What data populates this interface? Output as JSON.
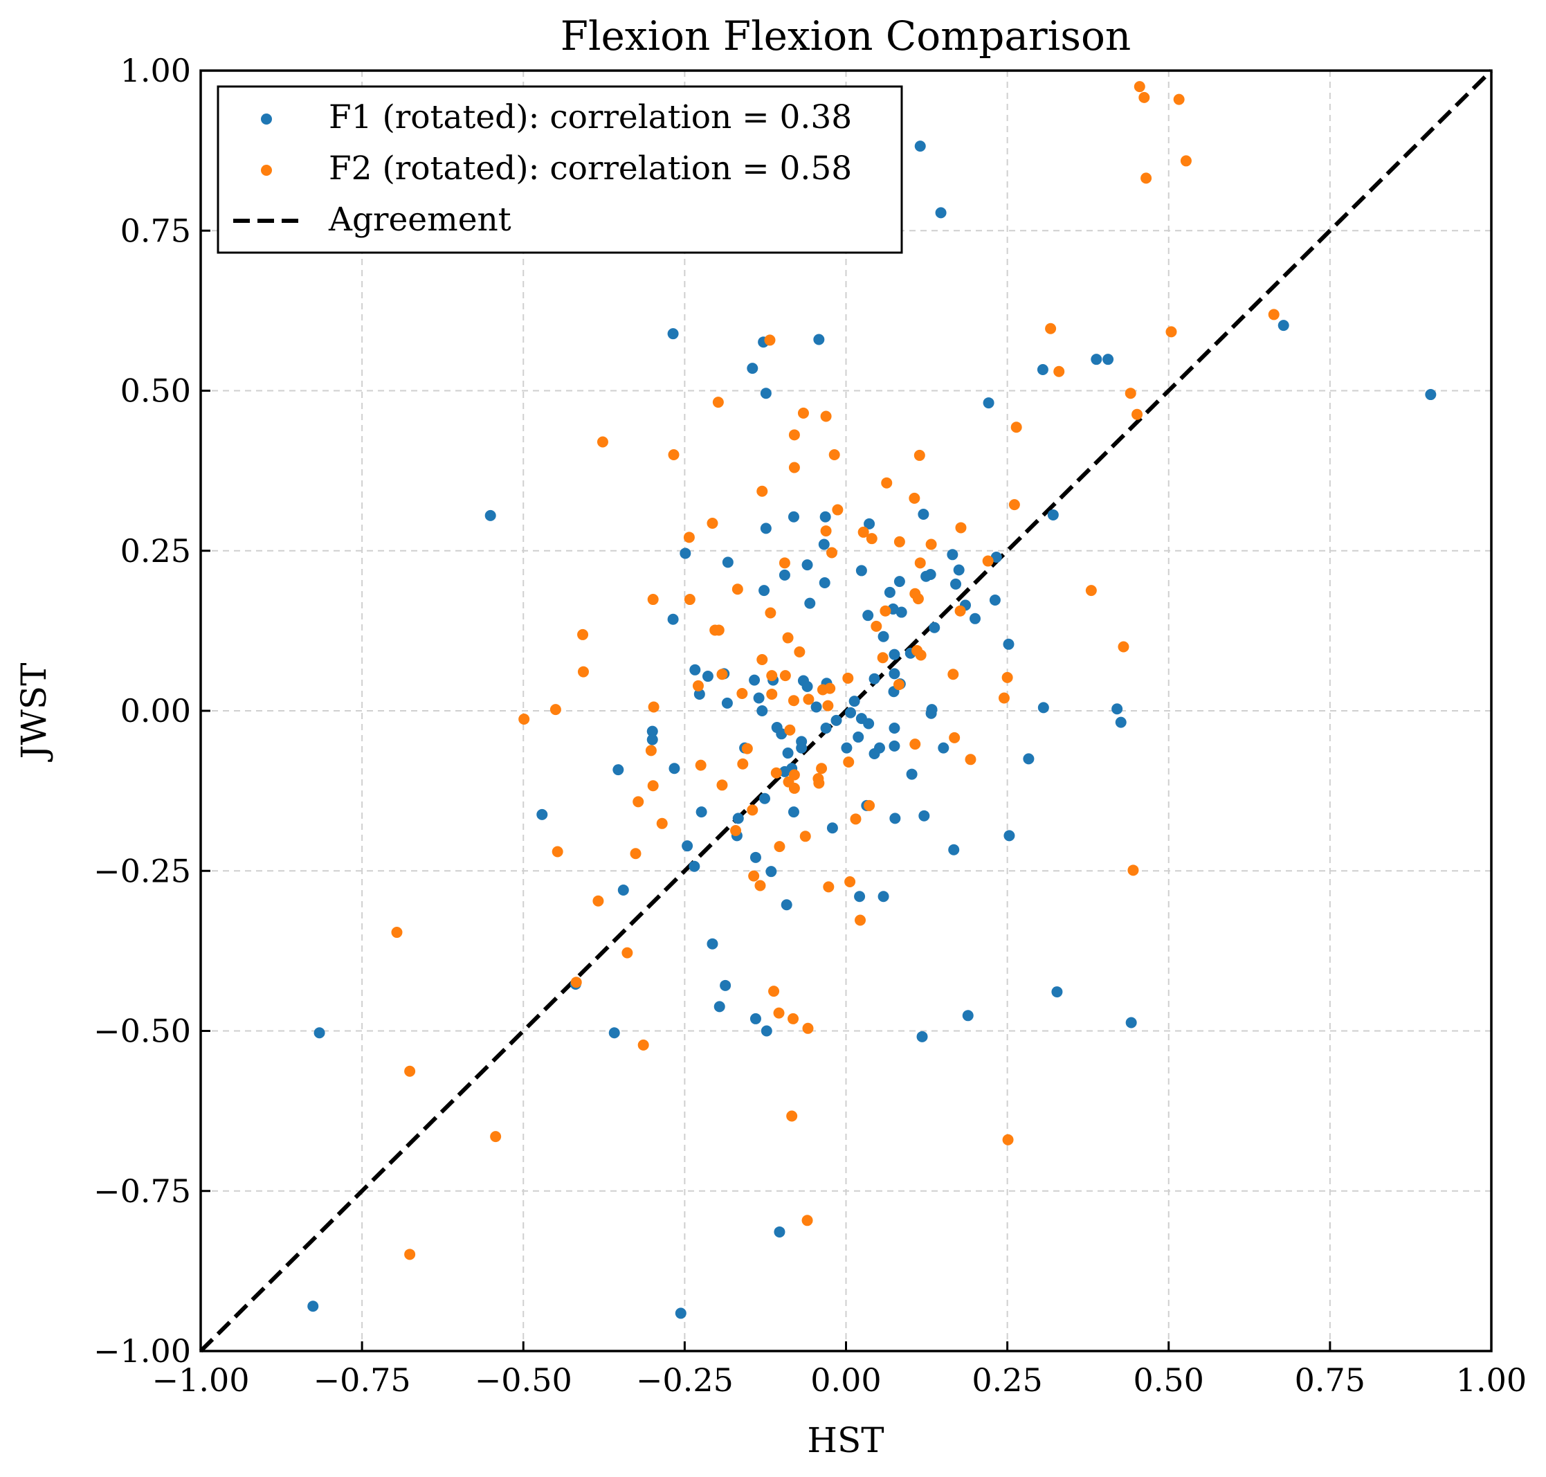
{
  "chart_data": {
    "type": "scatter",
    "title": "Flexion Flexion Comparison",
    "xlabel": "HST",
    "ylabel": "JWST",
    "xlim": [
      -1.0,
      1.0
    ],
    "ylim": [
      -1.0,
      1.0
    ],
    "xticks": [
      "−1.00",
      "−0.75",
      "−0.50",
      "−0.25",
      "0.00",
      "0.25",
      "0.50",
      "0.75",
      "1.00"
    ],
    "yticks": [
      "−1.00",
      "−0.75",
      "−0.50",
      "−0.25",
      "0.00",
      "0.25",
      "0.50",
      "0.75",
      "1.00"
    ],
    "xtick_values": [
      -1.0,
      -0.75,
      -0.5,
      -0.25,
      0.0,
      0.25,
      0.5,
      0.75,
      1.0
    ],
    "ytick_values": [
      -1.0,
      -0.75,
      -0.5,
      -0.25,
      0.0,
      0.25,
      0.5,
      0.75,
      1.0
    ],
    "grid": true,
    "legend_position": "top-left",
    "series": [
      {
        "name": "F1 (rotated): correlation = 0.38",
        "color": "#1f77b4",
        "points": [
          [
            0.115,
            0.882
          ],
          [
            0.147,
            0.778
          ],
          [
            -0.268,
            0.589
          ],
          [
            -0.128,
            0.576
          ],
          [
            -0.042,
            0.58
          ],
          [
            -0.145,
            0.535
          ],
          [
            -0.124,
            0.496
          ],
          [
            0.305,
            0.533
          ],
          [
            0.388,
            0.549
          ],
          [
            0.406,
            0.549
          ],
          [
            0.678,
            0.602
          ],
          [
            0.906,
            0.494
          ],
          [
            0.221,
            0.481
          ],
          [
            -0.551,
            0.305
          ],
          [
            -0.081,
            0.303
          ],
          [
            -0.032,
            0.303
          ],
          [
            0.12,
            0.307
          ],
          [
            0.321,
            0.306
          ],
          [
            -0.124,
            0.285
          ],
          [
            0.036,
            0.292
          ],
          [
            -0.249,
            0.246
          ],
          [
            -0.034,
            0.26
          ],
          [
            0.165,
            0.244
          ],
          [
            0.233,
            0.24
          ],
          [
            -0.183,
            0.232
          ],
          [
            -0.06,
            0.228
          ],
          [
            0.175,
            0.22
          ],
          [
            0.024,
            0.219
          ],
          [
            -0.095,
            0.212
          ],
          [
            0.124,
            0.21
          ],
          [
            0.131,
            0.213
          ],
          [
            0.083,
            0.202
          ],
          [
            -0.033,
            0.2
          ],
          [
            0.17,
            0.198
          ],
          [
            -0.127,
            0.188
          ],
          [
            0.068,
            0.185
          ],
          [
            0.231,
            0.173
          ],
          [
            -0.056,
            0.168
          ],
          [
            0.185,
            0.165
          ],
          [
            0.073,
            0.159
          ],
          [
            0.086,
            0.154
          ],
          [
            0.034,
            0.149
          ],
          [
            0.2,
            0.144
          ],
          [
            -0.268,
            0.143
          ],
          [
            0.137,
            0.13
          ],
          [
            0.058,
            0.116
          ],
          [
            0.252,
            0.104
          ],
          [
            0.1,
            0.09
          ],
          [
            0.075,
            0.088
          ],
          [
            -0.234,
            0.064
          ],
          [
            0.075,
            0.058
          ],
          [
            -0.214,
            0.054
          ],
          [
            -0.189,
            0.058
          ],
          [
            -0.066,
            0.047
          ],
          [
            -0.113,
            0.048
          ],
          [
            -0.142,
            0.048
          ],
          [
            -0.06,
            0.038
          ],
          [
            0.044,
            0.05
          ],
          [
            -0.03,
            0.043
          ],
          [
            0.084,
            0.042
          ],
          [
            0.074,
            0.03
          ],
          [
            -0.227,
            0.026
          ],
          [
            -0.135,
            0.02
          ],
          [
            -0.184,
            0.012
          ],
          [
            -0.046,
            0.006
          ],
          [
            0.013,
            0.015
          ],
          [
            0.306,
            0.005
          ],
          [
            0.42,
            0.003
          ],
          [
            0.133,
            0.002
          ],
          [
            -0.13,
            0.0
          ],
          [
            0.132,
            -0.004
          ],
          [
            0.007,
            -0.003
          ],
          [
            0.024,
            -0.012
          ],
          [
            -0.015,
            -0.015
          ],
          [
            0.426,
            -0.018
          ],
          [
            0.075,
            -0.027
          ],
          [
            0.035,
            -0.02
          ],
          [
            -0.031,
            -0.027
          ],
          [
            -0.107,
            -0.026
          ],
          [
            -0.3,
            -0.032
          ],
          [
            -0.1,
            -0.036
          ],
          [
            0.019,
            -0.041
          ],
          [
            -0.3,
            -0.045
          ],
          [
            -0.069,
            -0.048
          ],
          [
            0.001,
            -0.058
          ],
          [
            -0.157,
            -0.058
          ],
          [
            0.075,
            -0.055
          ],
          [
            0.052,
            -0.058
          ],
          [
            0.151,
            -0.058
          ],
          [
            -0.069,
            -0.058
          ],
          [
            0.044,
            -0.067
          ],
          [
            -0.09,
            -0.066
          ],
          [
            0.283,
            -0.075
          ],
          [
            -0.084,
            -0.09
          ],
          [
            -0.266,
            -0.09
          ],
          [
            -0.353,
            -0.092
          ],
          [
            -0.095,
            -0.095
          ],
          [
            0.102,
            -0.099
          ],
          [
            -0.126,
            -0.137
          ],
          [
            -0.081,
            -0.158
          ],
          [
            -0.224,
            -0.158
          ],
          [
            -0.471,
            -0.162
          ],
          [
            0.121,
            -0.164
          ],
          [
            -0.167,
            -0.168
          ],
          [
            0.076,
            -0.168
          ],
          [
            0.032,
            -0.148
          ],
          [
            -0.021,
            -0.183
          ],
          [
            -0.169,
            -0.195
          ],
          [
            0.253,
            -0.195
          ],
          [
            -0.246,
            -0.211
          ],
          [
            0.167,
            -0.217
          ],
          [
            -0.14,
            -0.229
          ],
          [
            -0.235,
            -0.243
          ],
          [
            -0.116,
            -0.251
          ],
          [
            -0.345,
            -0.28
          ],
          [
            0.021,
            -0.29
          ],
          [
            0.058,
            -0.29
          ],
          [
            -0.092,
            -0.303
          ],
          [
            -0.207,
            -0.364
          ],
          [
            -0.419,
            -0.427
          ],
          [
            -0.187,
            -0.429
          ],
          [
            0.327,
            -0.439
          ],
          [
            -0.196,
            -0.462
          ],
          [
            0.189,
            -0.476
          ],
          [
            -0.14,
            -0.481
          ],
          [
            0.442,
            -0.487
          ],
          [
            -0.123,
            -0.5
          ],
          [
            -0.359,
            -0.503
          ],
          [
            -0.816,
            -0.503
          ],
          [
            0.118,
            -0.509
          ],
          [
            -0.103,
            -0.814
          ],
          [
            -0.826,
            -0.93
          ],
          [
            -0.256,
            -0.941
          ]
        ]
      },
      {
        "name": "F2 (rotated): correlation = 0.58",
        "color": "#ff7f0e",
        "points": [
          [
            0.455,
            0.975
          ],
          [
            0.462,
            0.958
          ],
          [
            0.516,
            0.955
          ],
          [
            0.527,
            0.859
          ],
          [
            0.465,
            0.832
          ],
          [
            0.663,
            0.619
          ],
          [
            0.317,
            0.597
          ],
          [
            0.504,
            0.592
          ],
          [
            -0.118,
            0.579
          ],
          [
            0.33,
            0.53
          ],
          [
            0.441,
            0.496
          ],
          [
            0.451,
            0.463
          ],
          [
            -0.198,
            0.482
          ],
          [
            -0.066,
            0.465
          ],
          [
            -0.031,
            0.46
          ],
          [
            0.264,
            0.443
          ],
          [
            -0.08,
            0.431
          ],
          [
            -0.377,
            0.42
          ],
          [
            -0.018,
            0.4
          ],
          [
            0.114,
            0.399
          ],
          [
            -0.267,
            0.4
          ],
          [
            -0.08,
            0.38
          ],
          [
            0.063,
            0.356
          ],
          [
            -0.13,
            0.343
          ],
          [
            0.106,
            0.332
          ],
          [
            0.261,
            0.322
          ],
          [
            -0.013,
            0.314
          ],
          [
            -0.207,
            0.293
          ],
          [
            0.178,
            0.286
          ],
          [
            -0.031,
            0.281
          ],
          [
            0.027,
            0.279
          ],
          [
            -0.243,
            0.271
          ],
          [
            0.04,
            0.269
          ],
          [
            0.083,
            0.264
          ],
          [
            0.132,
            0.26
          ],
          [
            -0.022,
            0.247
          ],
          [
            0.22,
            0.234
          ],
          [
            -0.095,
            0.231
          ],
          [
            0.115,
            0.231
          ],
          [
            0.38,
            0.188
          ],
          [
            -0.168,
            0.19
          ],
          [
            0.107,
            0.183
          ],
          [
            -0.299,
            0.174
          ],
          [
            -0.242,
            0.174
          ],
          [
            0.112,
            0.175
          ],
          [
            -0.117,
            0.153
          ],
          [
            0.177,
            0.156
          ],
          [
            0.061,
            0.156
          ],
          [
            0.047,
            0.132
          ],
          [
            -0.203,
            0.126
          ],
          [
            -0.197,
            0.126
          ],
          [
            -0.408,
            0.119
          ],
          [
            -0.09,
            0.114
          ],
          [
            0.43,
            0.1
          ],
          [
            0.11,
            0.094
          ],
          [
            0.116,
            0.087
          ],
          [
            -0.072,
            0.092
          ],
          [
            0.057,
            0.083
          ],
          [
            -0.13,
            0.08
          ],
          [
            -0.407,
            0.061
          ],
          [
            0.166,
            0.057
          ],
          [
            -0.192,
            0.057
          ],
          [
            -0.115,
            0.055
          ],
          [
            -0.094,
            0.055
          ],
          [
            0.003,
            0.051
          ],
          [
            0.25,
            0.052
          ],
          [
            -0.229,
            0.039
          ],
          [
            0.082,
            0.041
          ],
          [
            -0.036,
            0.033
          ],
          [
            -0.025,
            0.035
          ],
          [
            -0.115,
            0.026
          ],
          [
            -0.161,
            0.027
          ],
          [
            -0.081,
            0.016
          ],
          [
            0.245,
            0.02
          ],
          [
            -0.058,
            0.018
          ],
          [
            -0.028,
            0.008
          ],
          [
            -0.298,
            0.006
          ],
          [
            -0.45,
            0.002
          ],
          [
            -0.499,
            -0.013
          ],
          [
            0.168,
            -0.042
          ],
          [
            -0.087,
            -0.03
          ],
          [
            0.107,
            -0.052
          ],
          [
            -0.153,
            -0.059
          ],
          [
            -0.302,
            -0.062
          ],
          [
            0.193,
            -0.076
          ],
          [
            0.004,
            -0.08
          ],
          [
            -0.225,
            -0.085
          ],
          [
            -0.16,
            -0.083
          ],
          [
            -0.038,
            -0.09
          ],
          [
            -0.08,
            -0.1
          ],
          [
            -0.043,
            -0.106
          ],
          [
            -0.108,
            -0.097
          ],
          [
            -0.089,
            -0.111
          ],
          [
            -0.299,
            -0.117
          ],
          [
            -0.042,
            -0.113
          ],
          [
            -0.192,
            -0.116
          ],
          [
            -0.08,
            -0.121
          ],
          [
            0.036,
            -0.148
          ],
          [
            -0.322,
            -0.142
          ],
          [
            -0.145,
            -0.155
          ],
          [
            0.015,
            -0.169
          ],
          [
            -0.285,
            -0.176
          ],
          [
            -0.171,
            -0.187
          ],
          [
            -0.063,
            -0.196
          ],
          [
            -0.103,
            -0.212
          ],
          [
            -0.447,
            -0.22
          ],
          [
            -0.326,
            -0.223
          ],
          [
            0.445,
            -0.249
          ],
          [
            -0.143,
            -0.258
          ],
          [
            0.006,
            -0.267
          ],
          [
            -0.027,
            -0.275
          ],
          [
            -0.133,
            -0.273
          ],
          [
            -0.384,
            -0.297
          ],
          [
            0.022,
            -0.327
          ],
          [
            -0.339,
            -0.378
          ],
          [
            -0.696,
            -0.346
          ],
          [
            -0.418,
            -0.424
          ],
          [
            -0.112,
            -0.438
          ],
          [
            -0.104,
            -0.472
          ],
          [
            -0.082,
            -0.481
          ],
          [
            -0.059,
            -0.496
          ],
          [
            -0.314,
            -0.522
          ],
          [
            -0.676,
            -0.563
          ],
          [
            -0.084,
            -0.633
          ],
          [
            -0.543,
            -0.665
          ],
          [
            0.251,
            -0.67
          ],
          [
            -0.06,
            -0.796
          ],
          [
            -0.676,
            -0.849
          ]
        ]
      },
      {
        "name": "Agreement",
        "color": "#000000",
        "line_style": "dashed",
        "points": [
          [
            -1.0,
            -1.0
          ],
          [
            1.0,
            1.0
          ]
        ]
      }
    ]
  }
}
